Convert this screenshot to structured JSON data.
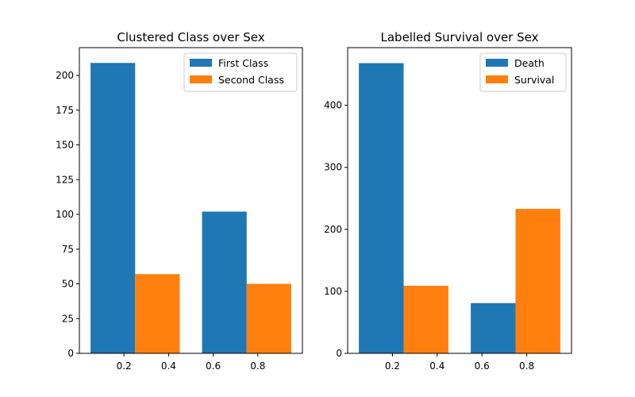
{
  "chart_data": [
    {
      "type": "bar",
      "title": "Clustered Class over Sex",
      "xlabel": "",
      "ylabel": "",
      "x_tick_labels": [
        "0.2",
        "0.4",
        "0.6",
        "0.8"
      ],
      "x_ticks": [
        0.2,
        0.4,
        0.6,
        0.8
      ],
      "xlim": [
        0.0,
        1.0
      ],
      "y_ticks": [
        0,
        25,
        50,
        75,
        100,
        125,
        150,
        175,
        200
      ],
      "ylim": [
        0,
        220
      ],
      "grid": false,
      "legend_position": "top-right",
      "series": [
        {
          "name": "First Class",
          "color": "#1f77b4",
          "bars": [
            {
              "x": [
                0.05,
                0.25
              ],
              "value": 209
            },
            {
              "x": [
                0.55,
                0.75
              ],
              "value": 102
            }
          ]
        },
        {
          "name": "Second Class",
          "color": "#ff7f0e",
          "bars": [
            {
              "x": [
                0.25,
                0.45
              ],
              "value": 57
            },
            {
              "x": [
                0.75,
                0.95
              ],
              "value": 50
            }
          ]
        }
      ]
    },
    {
      "type": "bar",
      "title": "Labelled Survival over Sex",
      "xlabel": "",
      "ylabel": "",
      "x_tick_labels": [
        "0.2",
        "0.4",
        "0.6",
        "0.8"
      ],
      "x_ticks": [
        0.2,
        0.4,
        0.6,
        0.8
      ],
      "xlim": [
        0.0,
        1.0
      ],
      "y_ticks": [
        0,
        100,
        200,
        300,
        400
      ],
      "ylim": [
        0,
        493
      ],
      "grid": false,
      "legend_position": "top-right",
      "series": [
        {
          "name": "Death",
          "color": "#1f77b4",
          "bars": [
            {
              "x": [
                0.05,
                0.25
              ],
              "value": 468
            },
            {
              "x": [
                0.55,
                0.75
              ],
              "value": 81
            }
          ]
        },
        {
          "name": "Survival",
          "color": "#ff7f0e",
          "bars": [
            {
              "x": [
                0.25,
                0.45
              ],
              "value": 109
            },
            {
              "x": [
                0.75,
                0.95
              ],
              "value": 233
            }
          ]
        }
      ]
    }
  ]
}
